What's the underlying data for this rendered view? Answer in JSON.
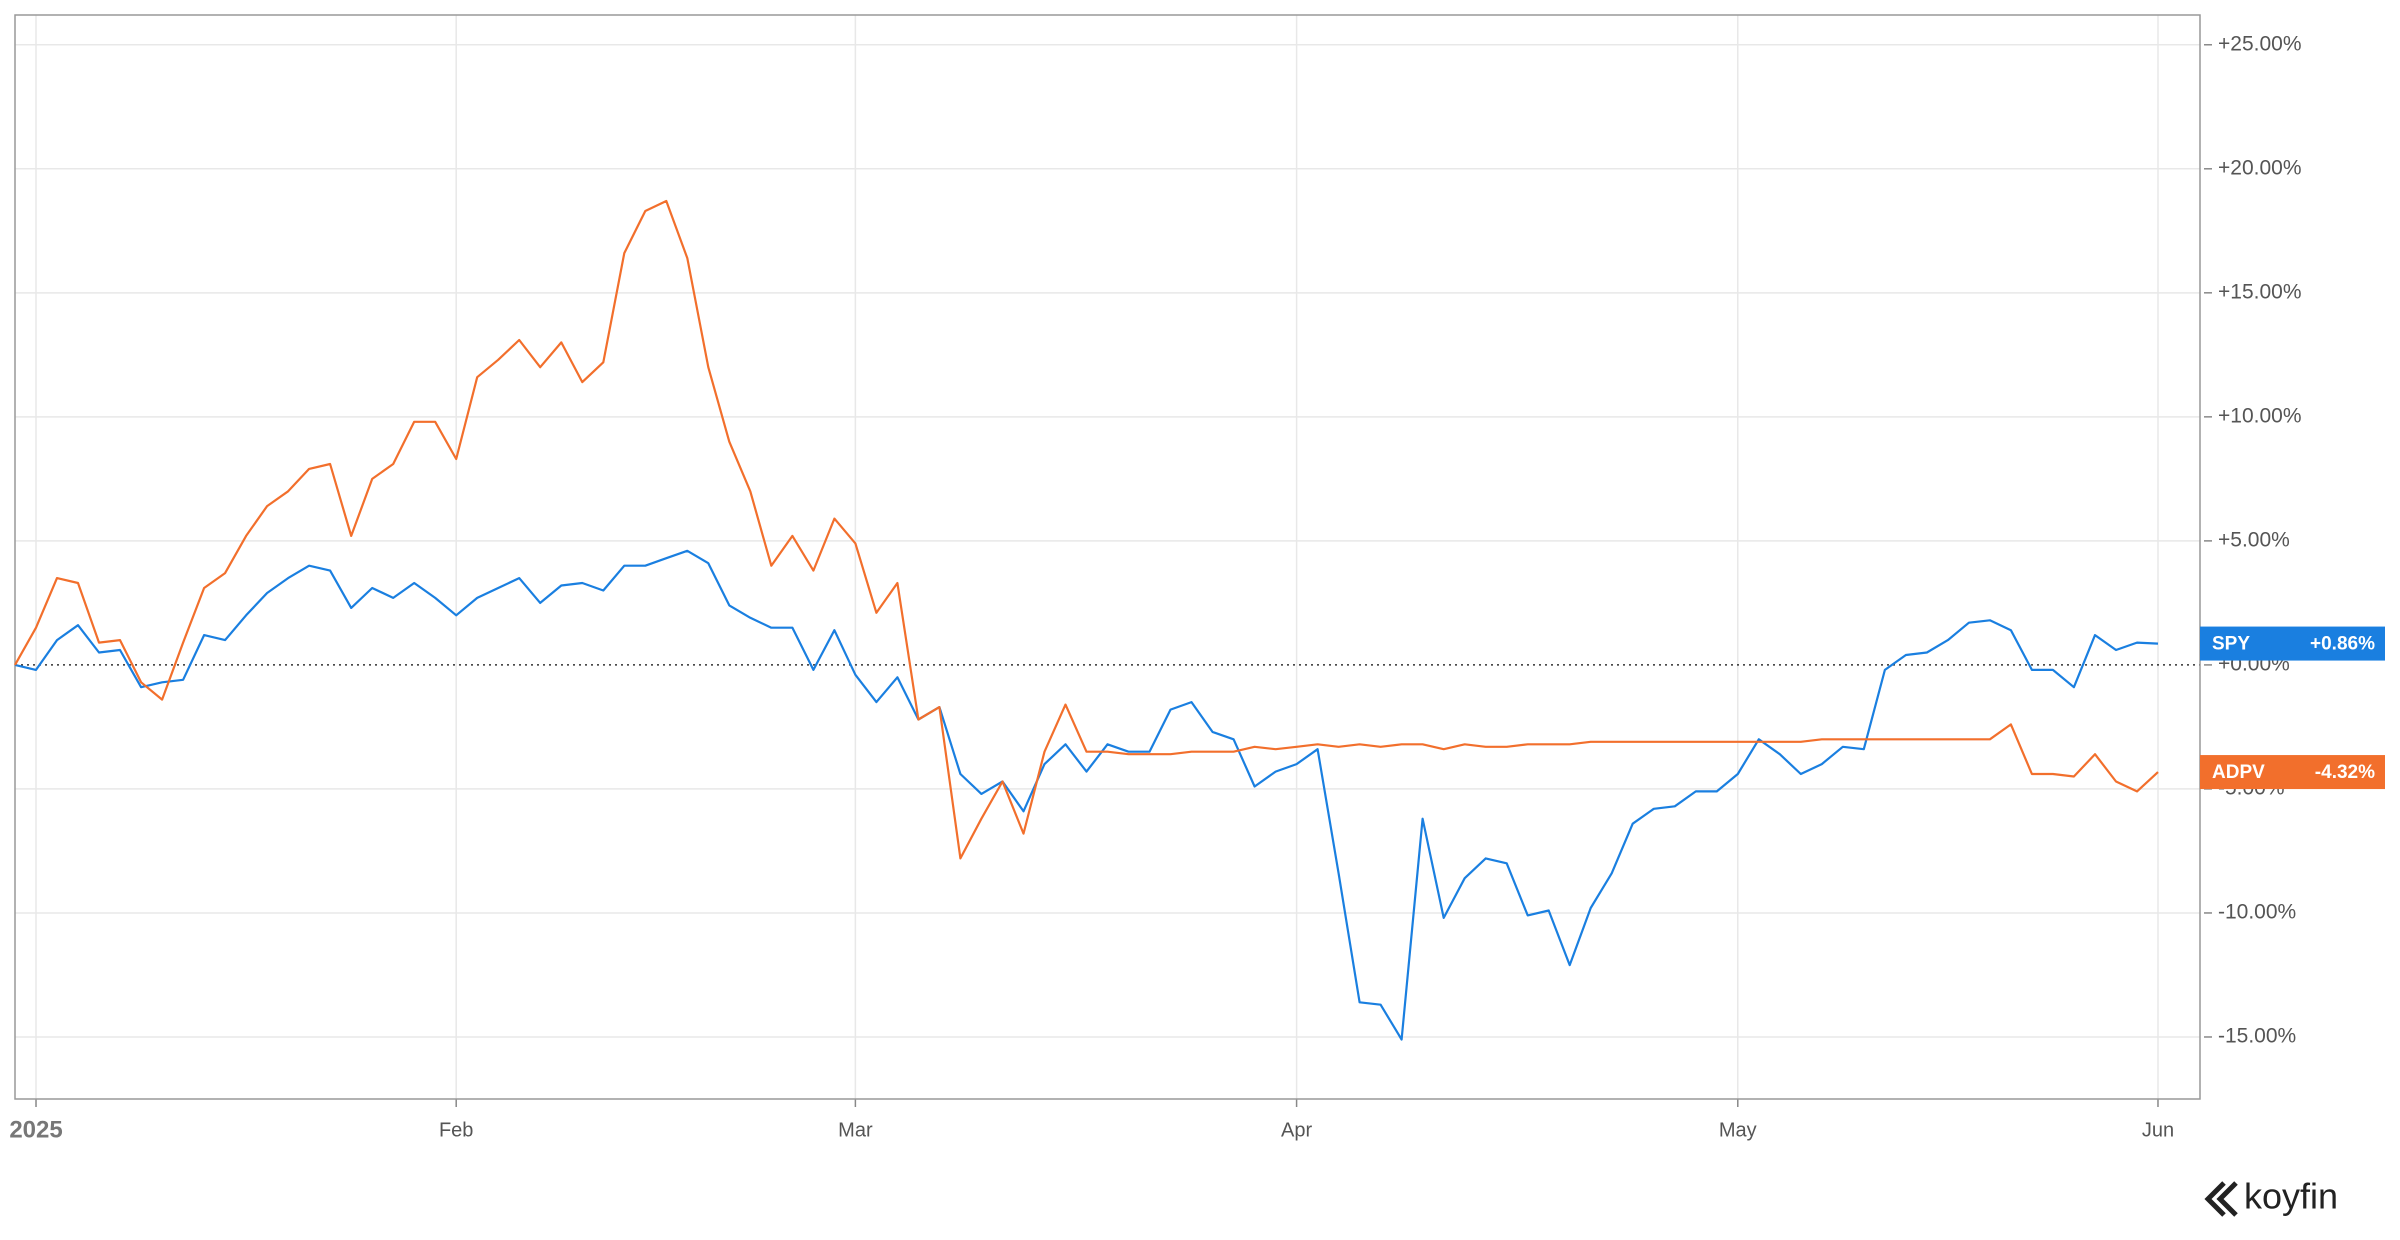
{
  "chart_data": {
    "type": "line",
    "brand": "koyfin",
    "xlim": [
      0,
      104
    ],
    "xticks": [
      {
        "value": 1,
        "label": "2025"
      },
      {
        "value": 21,
        "label": "Feb"
      },
      {
        "value": 40,
        "label": "Mar"
      },
      {
        "value": 61,
        "label": "Apr"
      },
      {
        "value": 82,
        "label": "May"
      },
      {
        "value": 102,
        "label": "Jun"
      }
    ],
    "ylim": [
      -17.5,
      26.2
    ],
    "yticks": [
      {
        "value": 25,
        "label": "+25.00%"
      },
      {
        "value": 20,
        "label": "+20.00%"
      },
      {
        "value": 15,
        "label": "+15.00%"
      },
      {
        "value": 10,
        "label": "+10.00%"
      },
      {
        "value": 5,
        "label": "+5.00%"
      },
      {
        "value": 0,
        "label": "+0.00%"
      },
      {
        "value": -5,
        "label": "-5.00%"
      },
      {
        "value": -10,
        "label": "-10.00%"
      },
      {
        "value": -15,
        "label": "-15.00%"
      }
    ],
    "grid": true,
    "series": [
      {
        "name": "SPY",
        "color": "#1a7fe0",
        "last_label": "+0.86%",
        "values": [
          0,
          -0.2,
          1.0,
          1.6,
          0.5,
          0.6,
          -0.9,
          -0.7,
          -0.6,
          1.2,
          1.0,
          2.0,
          2.9,
          3.5,
          4.0,
          3.8,
          2.3,
          3.1,
          2.7,
          3.3,
          2.7,
          2.0,
          2.7,
          3.1,
          3.5,
          2.5,
          3.2,
          3.3,
          3.0,
          4.0,
          4.0,
          4.3,
          4.6,
          4.1,
          2.4,
          1.9,
          1.5,
          1.5,
          -0.2,
          1.4,
          -0.4,
          -1.5,
          -0.5,
          -2.2,
          -1.7,
          -4.4,
          -5.2,
          -4.7,
          -5.9,
          -4.0,
          -3.2,
          -4.3,
          -3.2,
          -3.5,
          -3.5,
          -1.8,
          -1.5,
          -2.7,
          -3.0,
          -4.9,
          -4.3,
          -4.0,
          -3.4,
          -8.4,
          -13.6,
          -13.7,
          -15.1,
          -6.2,
          -10.2,
          -8.6,
          -7.8,
          -8.0,
          -10.1,
          -9.9,
          -12.1,
          -9.8,
          -8.4,
          -6.4,
          -5.8,
          -5.7,
          -5.1,
          -5.1,
          -4.4,
          -3.0,
          -3.6,
          -4.4,
          -4.0,
          -3.3,
          -3.4,
          -0.2,
          0.4,
          0.5,
          1.0,
          1.7,
          1.8,
          1.4,
          -0.2,
          -0.2,
          -0.9,
          1.2,
          0.6,
          0.9,
          0.86
        ]
      },
      {
        "name": "ADPV",
        "color": "#f26f2c",
        "last_label": "-4.32%",
        "values": [
          0,
          1.5,
          3.5,
          3.3,
          0.9,
          1.0,
          -0.7,
          -1.4,
          0.9,
          3.1,
          3.7,
          5.2,
          6.4,
          7.0,
          7.9,
          8.1,
          5.2,
          7.5,
          8.1,
          9.8,
          9.8,
          8.3,
          11.6,
          12.3,
          13.1,
          12.0,
          13.0,
          11.4,
          12.2,
          16.6,
          18.3,
          18.7,
          16.4,
          12.0,
          9.0,
          7.0,
          4.0,
          5.2,
          3.8,
          5.9,
          4.9,
          2.1,
          3.3,
          -2.2,
          -1.7,
          -7.8,
          -6.2,
          -4.7,
          -6.8,
          -3.5,
          -1.6,
          -3.5,
          -3.5,
          -3.6,
          -3.6,
          -3.6,
          -3.5,
          -3.5,
          -3.5,
          -3.3,
          -3.4,
          -3.3,
          -3.2,
          -3.3,
          -3.2,
          -3.3,
          -3.2,
          -3.2,
          -3.4,
          -3.2,
          -3.3,
          -3.3,
          -3.2,
          -3.2,
          -3.2,
          -3.1,
          -3.1,
          -3.1,
          -3.1,
          -3.1,
          -3.1,
          -3.1,
          -3.1,
          -3.1,
          -3.1,
          -3.1,
          -3.0,
          -3.0,
          -3.0,
          -3.0,
          -3.0,
          -3.0,
          -3.0,
          -3.0,
          -3.0,
          -2.4,
          -4.4,
          -4.4,
          -4.5,
          -3.6,
          -4.7,
          -5.1,
          -4.32
        ]
      }
    ]
  }
}
